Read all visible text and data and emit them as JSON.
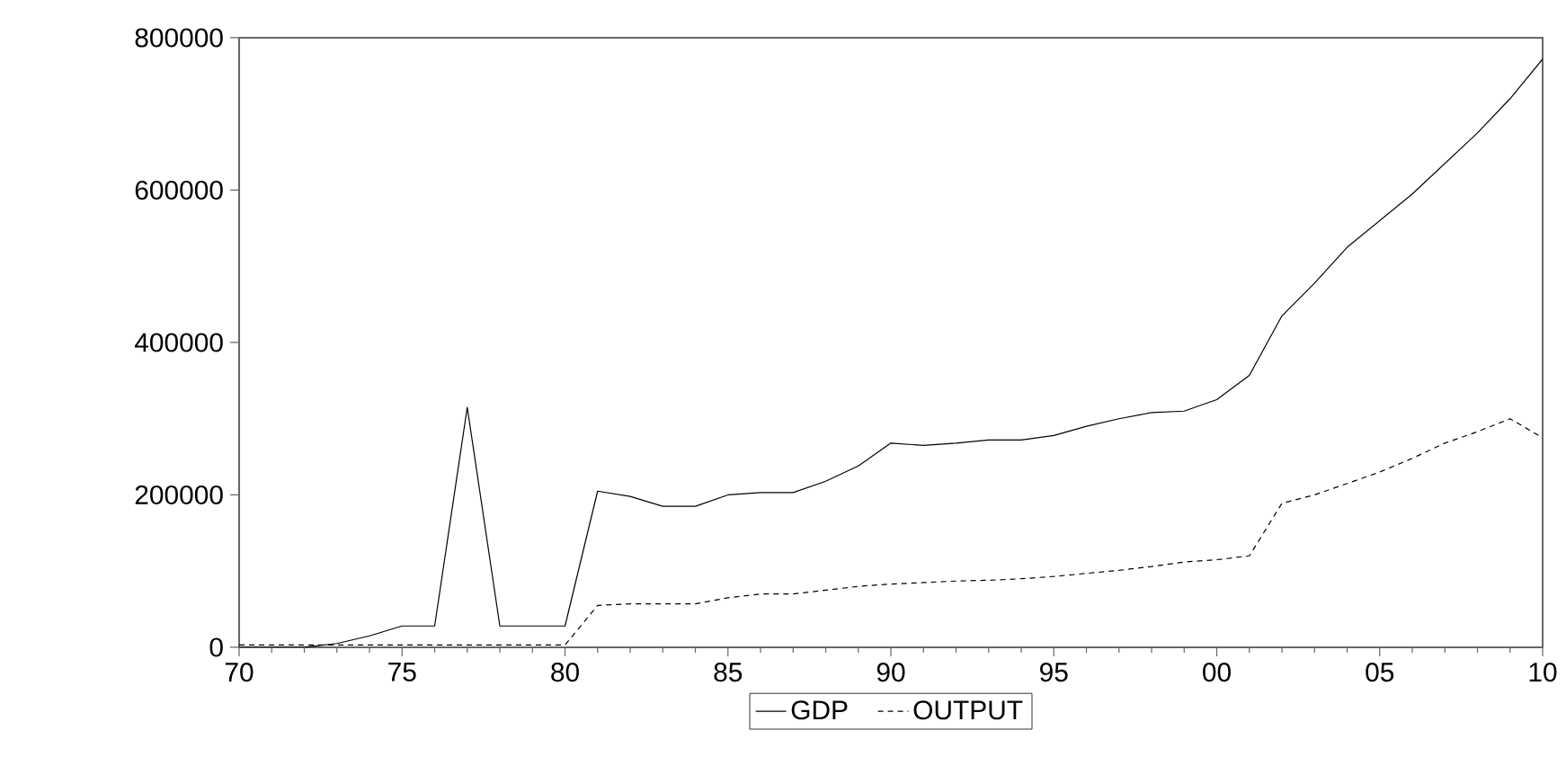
{
  "chart_data": {
    "type": "line",
    "x": [
      1970,
      1971,
      1972,
      1973,
      1974,
      1975,
      1976,
      1977,
      1978,
      1979,
      1980,
      1981,
      1982,
      1983,
      1984,
      1985,
      1986,
      1987,
      1988,
      1989,
      1990,
      1991,
      1992,
      1993,
      1994,
      1995,
      1996,
      1997,
      1998,
      1999,
      2000,
      2001,
      2002,
      2003,
      2004,
      2005,
      2006,
      2007,
      2008,
      2009,
      2010
    ],
    "series": [
      {
        "name": "GDP",
        "color": "#000000",
        "line_style": "solid",
        "values": [
          0,
          0,
          0,
          5000,
          15000,
          28000,
          28000,
          315000,
          28000,
          28000,
          28000,
          205000,
          198000,
          185000,
          185000,
          200000,
          203000,
          203000,
          218000,
          238000,
          268000,
          265000,
          268000,
          272000,
          272000,
          278000,
          290000,
          300000,
          308000,
          310000,
          325000,
          357000,
          435000,
          478000,
          525000,
          560000,
          595000,
          635000,
          675000,
          720000,
          772000
        ]
      },
      {
        "name": "OUTPUT",
        "color": "#000000",
        "line_style": "dashed",
        "values": [
          3000,
          3000,
          3000,
          3000,
          3000,
          3000,
          3000,
          3000,
          3000,
          3000,
          3000,
          55000,
          57000,
          57000,
          57000,
          65000,
          70000,
          70000,
          75000,
          80000,
          83000,
          85000,
          87000,
          88000,
          90000,
          93000,
          97000,
          101000,
          106000,
          112000,
          115000,
          120000,
          189000,
          200000,
          215000,
          230000,
          248000,
          268000,
          283000,
          300000,
          275000
        ]
      }
    ],
    "xlim": [
      1970,
      2010
    ],
    "xticks": [
      {
        "value": 1970,
        "label": "70"
      },
      {
        "value": 1975,
        "label": "75"
      },
      {
        "value": 1980,
        "label": "80"
      },
      {
        "value": 1985,
        "label": "85"
      },
      {
        "value": 1990,
        "label": "90"
      },
      {
        "value": 1995,
        "label": "95"
      },
      {
        "value": 2000,
        "label": "00"
      },
      {
        "value": 2005,
        "label": "05"
      },
      {
        "value": 2010,
        "label": "10"
      }
    ],
    "ylim": [
      0,
      800000
    ],
    "yticks": [
      0,
      200000,
      400000,
      600000,
      800000
    ],
    "grid": false,
    "legend": "bottom",
    "marker": "none"
  }
}
